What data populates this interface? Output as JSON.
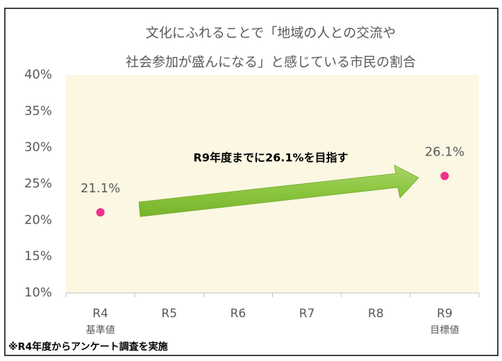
{
  "chart_data": {
    "type": "dot",
    "title": [
      "文化にふれることで「地域の人との交流や",
      "社会参加が盛んになる」と感じている市民の割合"
    ],
    "categories": [
      "R4",
      "R5",
      "R6",
      "R7",
      "R8",
      "R9"
    ],
    "sublabels": [
      "基準値",
      null,
      null,
      null,
      null,
      "目標値"
    ],
    "values": [
      21.1,
      null,
      null,
      null,
      null,
      26.1
    ],
    "value_labels": [
      "21.1%",
      null,
      null,
      null,
      null,
      "26.1%"
    ],
    "color": "#f0308c",
    "ylim": [
      10,
      40
    ],
    "yticks": [
      {
        "value": 10,
        "label": "10%"
      },
      {
        "value": 15,
        "label": "15%"
      },
      {
        "value": 20,
        "label": "20%"
      },
      {
        "value": 25,
        "label": "25%"
      },
      {
        "value": 30,
        "label": "30%"
      },
      {
        "value": 35,
        "label": "35%"
      },
      {
        "value": 40,
        "label": "40%"
      }
    ],
    "annotation": "R9年度までに26.1%を目指す",
    "footnote": "※R4年度からアンケート調査を実施"
  }
}
